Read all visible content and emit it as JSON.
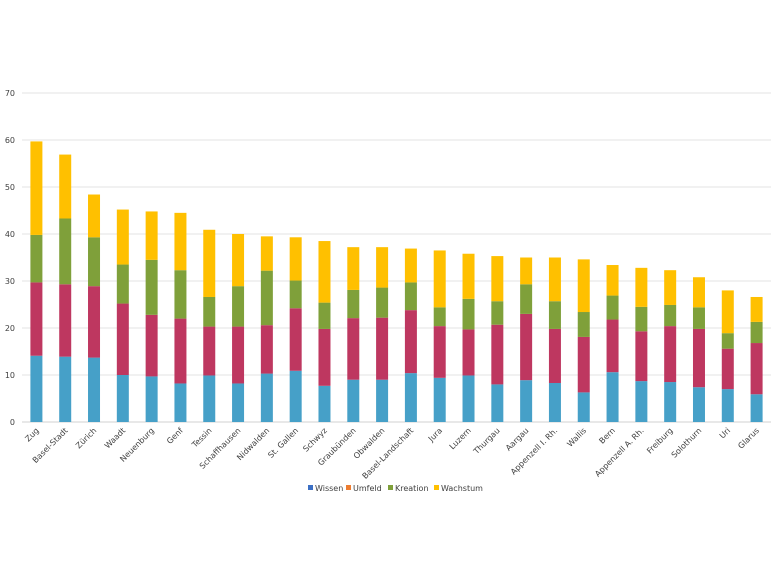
{
  "chart_data": {
    "type": "bar",
    "stacked": true,
    "title": "",
    "xlabel": "",
    "ylabel": "",
    "ylim": [
      0,
      70
    ],
    "yticks": [
      0,
      10,
      20,
      30,
      40,
      50,
      60,
      70
    ],
    "grid": true,
    "legend_position": "bottom",
    "categories": [
      "Zug",
      "Basel-Stadt",
      "Zürich",
      "Waadt",
      "Neuenburg",
      "Genf",
      "Tessin",
      "Schaffhausen",
      "Nidwalden",
      "St. Gallen",
      "Schwyz",
      "Graubünden",
      "Obwalden",
      "Basel-Landschaft",
      "Jura",
      "Luzern",
      "Thurgau",
      "Aargau",
      "Appenzell I. Rh.",
      "Wallis",
      "Bern",
      "Appenzell A. Rh.",
      "Freiburg",
      "Solothurn",
      "Uri",
      "Glarus"
    ],
    "series": [
      {
        "name": "Wissen",
        "bar_color": "#46A0C8",
        "legend_color": "#3B6FC4",
        "values": [
          14.1,
          13.9,
          13.7,
          10.0,
          9.7,
          8.2,
          9.9,
          8.2,
          10.3,
          10.9,
          7.7,
          9.0,
          9.0,
          10.4,
          9.4,
          9.9,
          8.0,
          8.9,
          8.3,
          6.3,
          10.6,
          8.7,
          8.5,
          7.4,
          7.0,
          5.9
        ]
      },
      {
        "name": "Umfeld",
        "bar_color": "#BE3760",
        "legend_color": "#ED7D31",
        "values": [
          15.6,
          15.4,
          15.2,
          15.2,
          13.1,
          13.8,
          10.4,
          12.1,
          10.3,
          13.3,
          12.1,
          13.1,
          13.2,
          13.4,
          11.0,
          9.8,
          12.7,
          14.1,
          11.5,
          11.8,
          11.2,
          10.6,
          11.9,
          12.4,
          8.6,
          10.9
        ]
      },
      {
        "name": "Kreation",
        "bar_color": "#7FA03A",
        "legend_color": "#7FA03A",
        "values": [
          10.1,
          14.0,
          10.4,
          8.3,
          11.7,
          10.3,
          6.3,
          8.6,
          11.6,
          5.9,
          5.6,
          6.0,
          6.4,
          5.9,
          4.0,
          6.5,
          5.0,
          6.3,
          5.9,
          5.3,
          5.1,
          5.2,
          4.5,
          4.6,
          3.3,
          4.5
        ]
      },
      {
        "name": "Wachstum",
        "bar_color": "#FFC000",
        "legend_color": "#FFC000",
        "values": [
          19.9,
          13.6,
          9.1,
          11.7,
          10.3,
          12.2,
          14.3,
          11.1,
          7.3,
          9.2,
          13.1,
          9.1,
          8.6,
          7.2,
          12.1,
          9.6,
          9.6,
          5.7,
          9.3,
          11.2,
          6.5,
          8.3,
          7.4,
          6.4,
          9.1,
          5.3
        ]
      }
    ]
  }
}
